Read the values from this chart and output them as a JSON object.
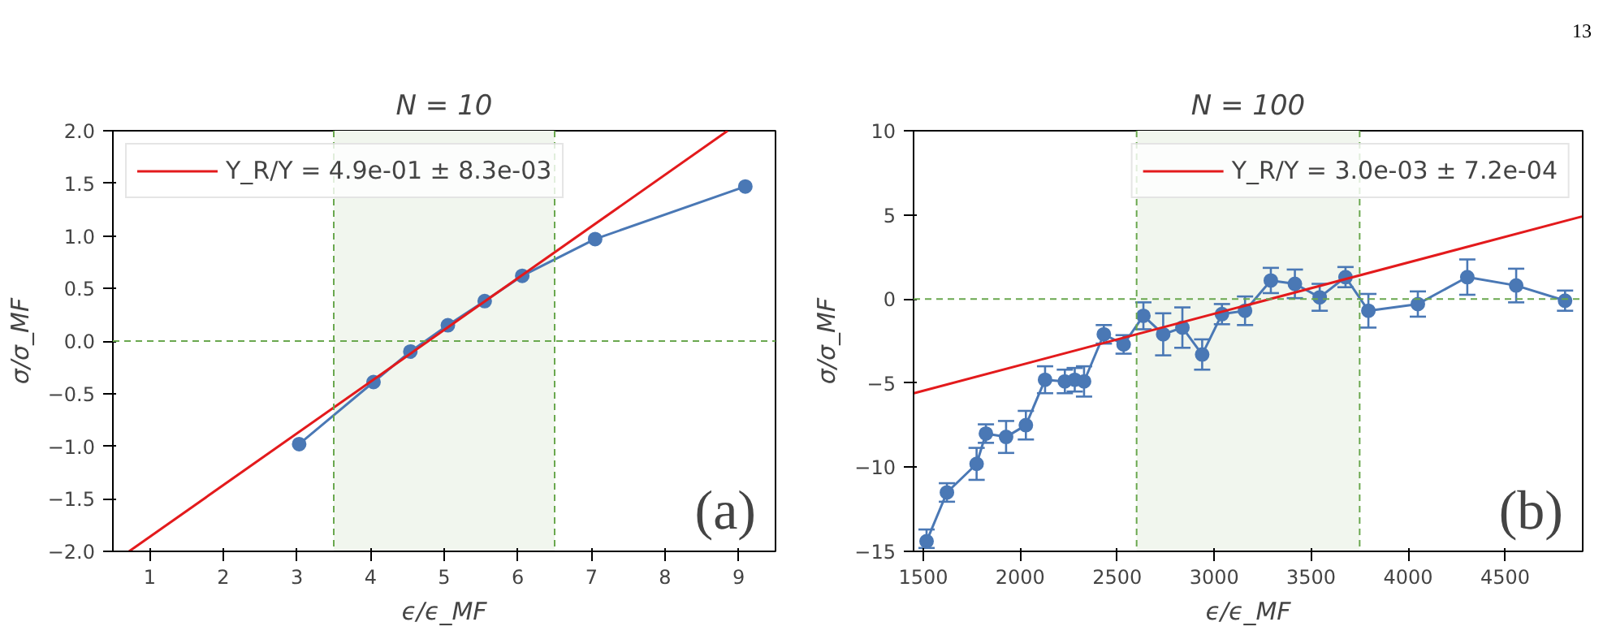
{
  "chart_data": [
    {
      "type": "line",
      "title": "N = 10",
      "xlabel": "ϵ/ϵ_MF",
      "ylabel": "σ/σ_MF",
      "xlim": [
        0.5,
        9.5
      ],
      "xticks": [
        1,
        2,
        3,
        4,
        5,
        6,
        7,
        8,
        9
      ],
      "ylim": [
        -2.0,
        2.0
      ],
      "yticks": [
        {
          "value": -2,
          "label": "−2.0"
        },
        {
          "value": -1.5,
          "label": "−1.5"
        },
        {
          "value": -1,
          "label": "−1.0"
        },
        {
          "value": -0.5,
          "label": "−0.5"
        },
        {
          "value": 0,
          "label": "0.0"
        },
        {
          "value": 0.5,
          "label": "0.5"
        },
        {
          "value": 1,
          "label": "1.0"
        },
        {
          "value": 1.5,
          "label": "1.5"
        },
        {
          "value": 2,
          "label": "2.0"
        }
      ],
      "series": [
        {
          "color": "#4a78b5",
          "marker": "circle",
          "x": [
            3.03,
            4.04,
            4.54,
            5.05,
            5.55,
            6.06,
            7.05,
            9.09
          ],
          "values": [
            -0.98,
            -0.39,
            -0.1,
            0.15,
            0.38,
            0.62,
            0.97,
            1.47
          ]
        },
        {
          "name": "Y_R/Y = 4.9e-01 ± 8.3e-03",
          "color": "#e31a1c",
          "x": [
            0.72,
            8.85
          ],
          "values": [
            -2.0,
            2.0
          ]
        }
      ],
      "bands": [
        {
          "axis": "x",
          "from": 3.5,
          "to": 6.5,
          "color": "#f1f6ee"
        }
      ],
      "ref_lines": [
        {
          "axis": "x",
          "value": 3.5,
          "color": "#6aa84f",
          "line_style": "dashed"
        },
        {
          "axis": "x",
          "value": 6.5,
          "color": "#6aa84f",
          "line_style": "dashed"
        },
        {
          "axis": "y",
          "value": 0,
          "color": "#6aa84f",
          "line_style": "dashed"
        }
      ],
      "annotations": [
        "(a)"
      ],
      "legend": "top left",
      "grid": false
    },
    {
      "type": "line",
      "title": "N = 100",
      "xlabel": "ϵ/ϵ_MF",
      "ylabel": "σ/σ_MF",
      "xlim": [
        1450,
        4900
      ],
      "xticks": [
        1500,
        2000,
        2500,
        3000,
        3500,
        4000,
        4500
      ],
      "ylim": [
        -15,
        10
      ],
      "yticks": [
        {
          "value": -15,
          "label": "−15"
        },
        {
          "value": -10,
          "label": "−10"
        },
        {
          "value": -5,
          "label": "−5"
        },
        0,
        5,
        10
      ],
      "series": [
        {
          "color": "#4a78b5",
          "marker": "circle",
          "x": [
            1517,
            1622,
            1775,
            1823,
            1927,
            2029,
            2128,
            2230,
            2281,
            2329,
            2431,
            2533,
            2635,
            2737,
            2836,
            2938,
            3040,
            3159,
            3292,
            3416,
            3544,
            3677,
            3795,
            4050,
            4305,
            4557,
            4809
          ],
          "values": [
            -14.4,
            -11.5,
            -9.8,
            -8.0,
            -8.2,
            -7.5,
            -4.8,
            -4.9,
            -4.8,
            -4.9,
            -2.1,
            -2.7,
            -1.0,
            -2.1,
            -1.7,
            -3.3,
            -0.9,
            -0.7,
            1.1,
            0.9,
            0.1,
            1.3,
            -0.7,
            -0.3,
            1.3,
            0.8,
            -0.1
          ],
          "errors": [
            [
              -14.8,
              -13.7
            ],
            0.55,
            0.95,
            0.55,
            0.95,
            0.85,
            0.8,
            0.7,
            0.7,
            0.9,
            0.55,
            0.55,
            0.8,
            1.25,
            1.2,
            0.9,
            0.6,
            0.85,
            0.75,
            0.85,
            0.8,
            0.6,
            1.0,
            0.75,
            1.05,
            1.0,
            0.6
          ]
        },
        {
          "name": "Y_R/Y = 3.0e-03 ± 7.2e-04",
          "color": "#e31a1c",
          "x": [
            1452,
            4896
          ],
          "values": [
            -5.6,
            4.9
          ]
        }
      ],
      "bands": [
        {
          "axis": "x",
          "from": 2600,
          "to": 3750,
          "color": "#f1f6ee"
        }
      ],
      "ref_lines": [
        {
          "axis": "x",
          "value": 2600,
          "color": "#6aa84f",
          "line_style": "dashed"
        },
        {
          "axis": "x",
          "value": 3750,
          "color": "#6aa84f",
          "line_style": "dashed"
        },
        {
          "axis": "y",
          "value": 0,
          "color": "#6aa84f",
          "line_style": "dashed"
        }
      ],
      "annotations": [
        "(b)",
        "13"
      ],
      "legend": "top right",
      "grid": false
    }
  ]
}
